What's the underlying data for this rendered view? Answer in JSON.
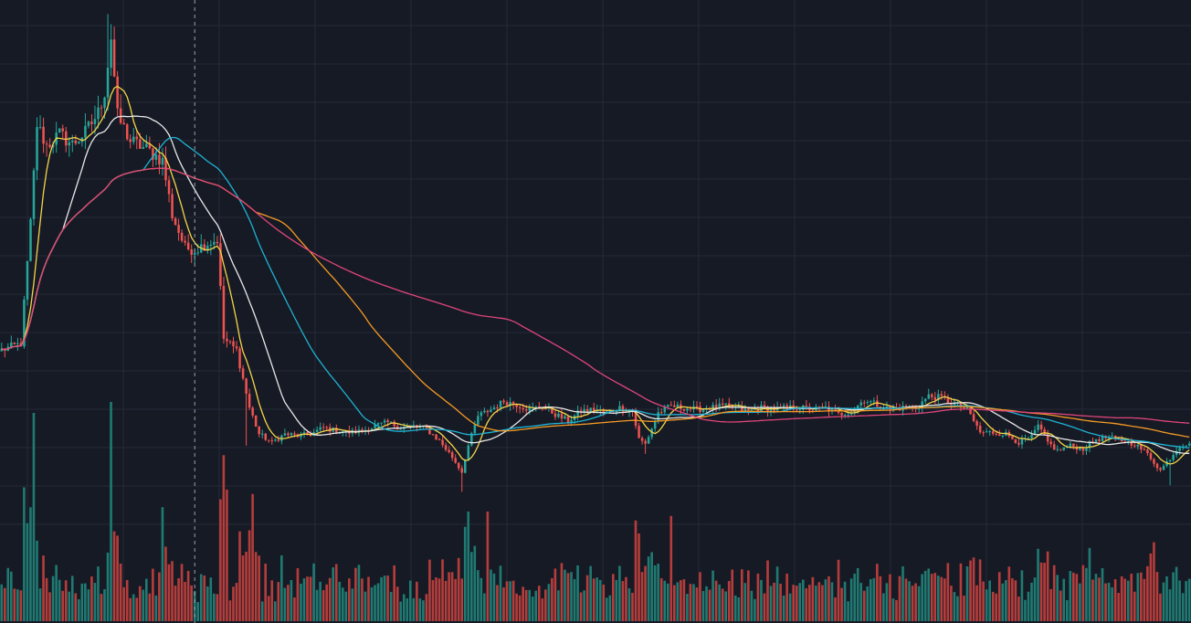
{
  "colors": {
    "background": "#161a25",
    "grid": "#242a38",
    "up": "#26a69a",
    "down": "#ef5350",
    "volume_up": "#1f7a72",
    "volume_down": "#b53d3b",
    "crosshair": "#9aa0aa"
  },
  "chart_data": {
    "type": "candlestick",
    "grid": true,
    "legend": "none",
    "crosshair_at_index": 60,
    "bars": 370,
    "anchors": [
      [
        0,
        1.48
      ],
      [
        6,
        1.52
      ],
      [
        9,
        2.25
      ],
      [
        11,
        2.85
      ],
      [
        14,
        2.72
      ],
      [
        18,
        2.79
      ],
      [
        22,
        2.73
      ],
      [
        26,
        2.8
      ],
      [
        30,
        2.92
      ],
      [
        32,
        3.05
      ],
      [
        34,
        3.38
      ],
      [
        36,
        2.9
      ],
      [
        40,
        2.75
      ],
      [
        45,
        2.7
      ],
      [
        50,
        2.63
      ],
      [
        53,
        2.3
      ],
      [
        57,
        2.1
      ],
      [
        60,
        2.09
      ],
      [
        64,
        2.13
      ],
      [
        67,
        2.15
      ],
      [
        69,
        1.55
      ],
      [
        73,
        1.48
      ],
      [
        77,
        1.13
      ],
      [
        80,
        0.97
      ],
      [
        84,
        0.92
      ],
      [
        88,
        0.97
      ],
      [
        92,
        0.96
      ],
      [
        96,
        0.97
      ],
      [
        100,
        1.01
      ],
      [
        104,
        0.99
      ],
      [
        108,
        0.98
      ],
      [
        112,
        0.99
      ],
      [
        116,
        1.02
      ],
      [
        120,
        1.04
      ],
      [
        124,
        1.01
      ],
      [
        128,
        1.02
      ],
      [
        132,
        1.0
      ],
      [
        136,
        0.93
      ],
      [
        140,
        0.83
      ],
      [
        143,
        0.74
      ],
      [
        145,
        0.9
      ],
      [
        148,
        1.08
      ],
      [
        152,
        1.12
      ],
      [
        156,
        1.17
      ],
      [
        160,
        1.15
      ],
      [
        164,
        1.12
      ],
      [
        168,
        1.14
      ],
      [
        172,
        1.09
      ],
      [
        176,
        1.05
      ],
      [
        180,
        1.11
      ],
      [
        184,
        1.12
      ],
      [
        188,
        1.1
      ],
      [
        192,
        1.13
      ],
      [
        196,
        1.11
      ],
      [
        198,
        0.94
      ],
      [
        200,
        0.91
      ],
      [
        204,
        1.1
      ],
      [
        208,
        1.14
      ],
      [
        212,
        1.13
      ],
      [
        216,
        1.12
      ],
      [
        220,
        1.13
      ],
      [
        224,
        1.14
      ],
      [
        228,
        1.13
      ],
      [
        232,
        1.11
      ],
      [
        236,
        1.13
      ],
      [
        240,
        1.12
      ],
      [
        244,
        1.13
      ],
      [
        248,
        1.13
      ],
      [
        252,
        1.12
      ],
      [
        256,
        1.13
      ],
      [
        260,
        1.09
      ],
      [
        264,
        1.11
      ],
      [
        268,
        1.18
      ],
      [
        272,
        1.15
      ],
      [
        276,
        1.12
      ],
      [
        280,
        1.13
      ],
      [
        284,
        1.13
      ],
      [
        288,
        1.2
      ],
      [
        292,
        1.19
      ],
      [
        296,
        1.15
      ],
      [
        300,
        1.12
      ],
      [
        304,
        0.98
      ],
      [
        308,
        0.98
      ],
      [
        312,
        0.97
      ],
      [
        316,
        0.92
      ],
      [
        320,
        0.95
      ],
      [
        322,
        1.02
      ],
      [
        325,
        0.92
      ],
      [
        328,
        0.87
      ],
      [
        332,
        0.9
      ],
      [
        336,
        0.88
      ],
      [
        340,
        0.94
      ],
      [
        344,
        0.95
      ],
      [
        348,
        0.93
      ],
      [
        352,
        0.91
      ],
      [
        356,
        0.85
      ],
      [
        360,
        0.75
      ],
      [
        362,
        0.8
      ],
      [
        366,
        0.9
      ],
      [
        369,
        0.92
      ]
    ],
    "y_range": [
      0.5,
      3.55
    ],
    "volume_range": [
      0,
      1
    ],
    "moving_averages": [
      {
        "period": 7,
        "color": "#f5d547"
      },
      {
        "period": 20,
        "color": "#e8e8e8"
      },
      {
        "period": 45,
        "color": "#1fb3d4"
      },
      {
        "period": 80,
        "color": "#f59a23"
      },
      {
        "period": 150,
        "color": "#e0457b"
      }
    ]
  }
}
